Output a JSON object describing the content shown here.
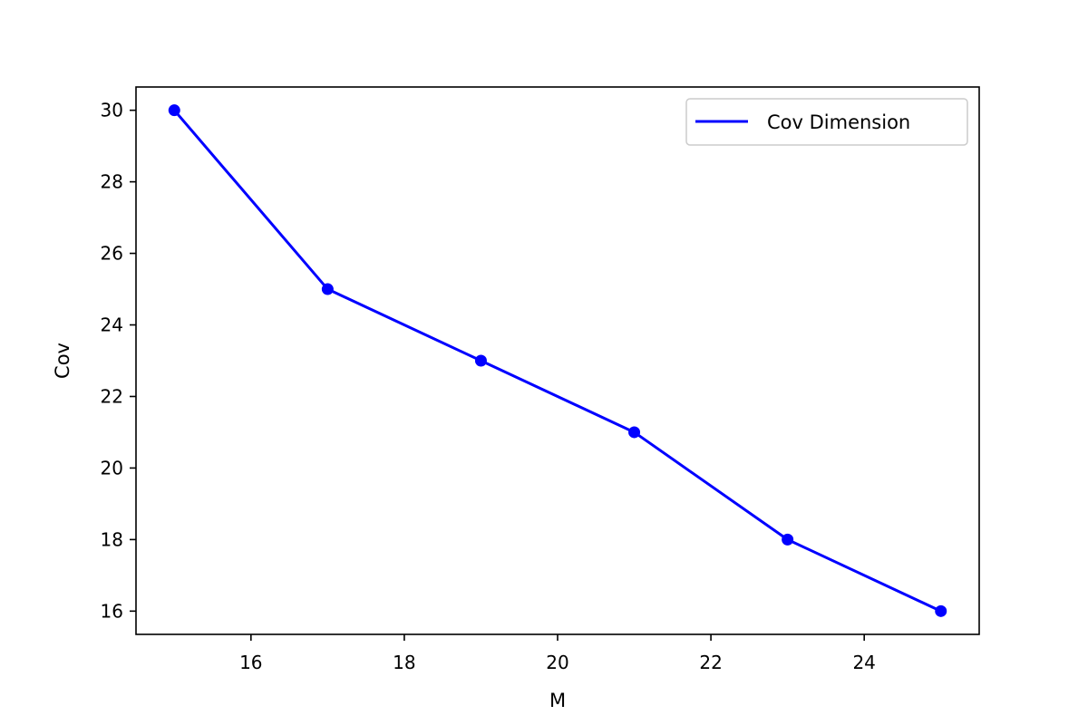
{
  "chart_data": {
    "type": "line",
    "title": "",
    "xlabel": "M",
    "ylabel": "Cov",
    "xlim": [
      14.5,
      25.5
    ],
    "ylim": [
      15.35,
      30.65
    ],
    "xticks": [
      16,
      18,
      20,
      22,
      24
    ],
    "yticks": [
      16,
      18,
      20,
      22,
      24,
      26,
      28,
      30
    ],
    "grid": false,
    "legend_position": "top-right",
    "series": [
      {
        "name": "Cov Dimension",
        "color": "#0000ff",
        "marker": "circle",
        "x": [
          15,
          17,
          19,
          21,
          23,
          25
        ],
        "y": [
          30,
          25,
          23,
          21,
          18,
          16
        ]
      }
    ]
  }
}
